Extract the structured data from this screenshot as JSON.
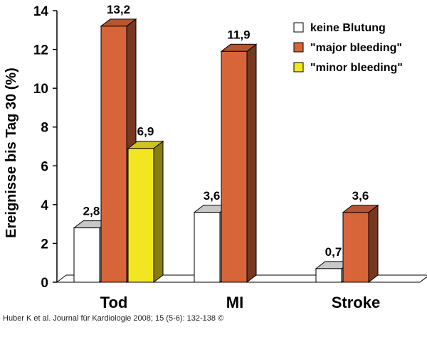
{
  "chart_data": {
    "type": "bar",
    "ylabel": "Ereignisse bis Tag 30 (%)",
    "ylim": [
      0,
      14
    ],
    "yticks": [
      0,
      2,
      4,
      6,
      8,
      10,
      12,
      14
    ],
    "categories": [
      "Tod",
      "MI",
      "Stroke"
    ],
    "series": [
      {
        "name": "keine Blutung",
        "color": "#ffffff",
        "values": [
          2.8,
          3.6,
          0.7
        ],
        "labels": [
          "2,8",
          "3,6",
          "0,7"
        ]
      },
      {
        "name": "\"major bleeding\"",
        "color": "#d8643a",
        "values": [
          13.2,
          11.9,
          3.6
        ],
        "labels": [
          "13,2",
          "11,9",
          "3,6"
        ]
      },
      {
        "name": "\"minor bleeding\"",
        "color": "#f2e620",
        "values": [
          6.9,
          null,
          null
        ],
        "labels": [
          "6,9",
          null,
          null
        ]
      }
    ],
    "legend_position": "top-right",
    "grid": false,
    "style": "3d-bars"
  },
  "citation": "Huber K et al. Journal für Kardiologie 2008; 15 (5-6): 132-138 ©"
}
